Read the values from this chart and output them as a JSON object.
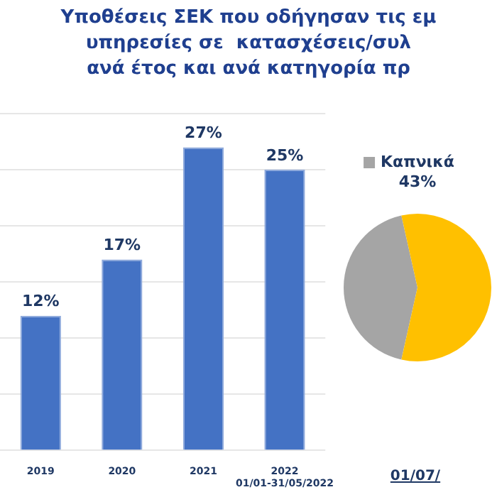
{
  "chart_data": [
    {
      "type": "bar",
      "title": "Υποθέσεις ΣΕΚ που οδήγησαν τις εμ\nυπηρεσίες σε  κατασχέσεις/συλ\nανά έτος και ανά κατηγορία πρ",
      "categories": [
        "2019",
        "2020",
        "2021",
        "2022\n01/01-31/05/2022"
      ],
      "values": [
        12,
        17,
        27,
        25
      ],
      "color": "#4472c4",
      "value_labels": [
        "12%",
        "17%",
        "27%",
        "25%"
      ],
      "ylim": [
        0,
        30
      ],
      "yticks": [
        0,
        5,
        10,
        15,
        20,
        25,
        30
      ],
      "grid": "y",
      "tick_labels": "x",
      "legend": false
    },
    {
      "type": "pie",
      "title": "01/07/",
      "categories": [
        "Καπνικά",
        null
      ],
      "values": [
        43,
        57
      ],
      "colors": [
        "#a5a5a5",
        "#ffc000"
      ],
      "value_labels": [
        "43%",
        null
      ],
      "legend": "left"
    }
  ]
}
